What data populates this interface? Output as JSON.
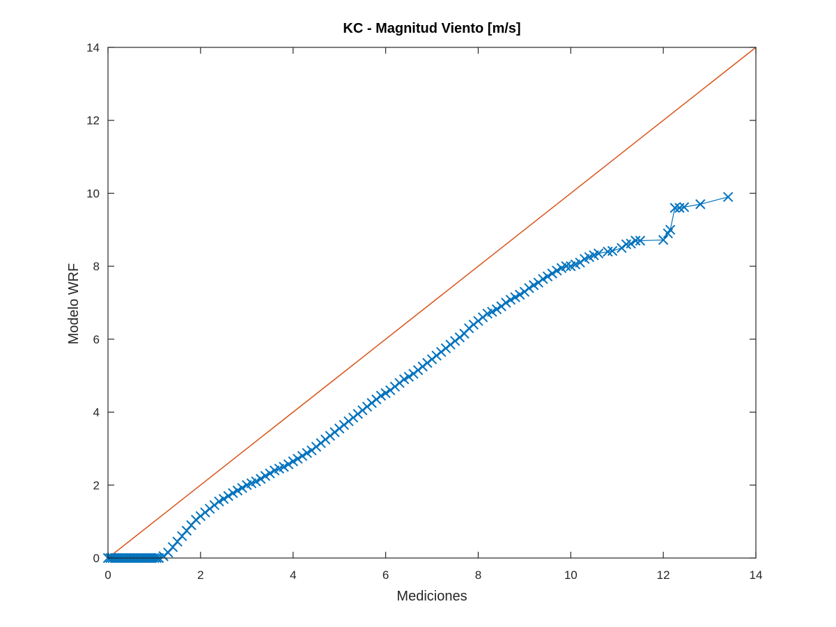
{
  "chart_data": {
    "type": "scatter",
    "title": "KC - Magnitud Viento [m/s]",
    "xlabel": "Mediciones",
    "ylabel": "Modelo WRF",
    "xlim": [
      0,
      14
    ],
    "ylim": [
      0,
      14
    ],
    "xticks": [
      "0",
      "2",
      "4",
      "6",
      "8",
      "10",
      "12",
      "14"
    ],
    "yticks": [
      "0",
      "2",
      "4",
      "6",
      "8",
      "10",
      "12",
      "14"
    ],
    "grid": false,
    "box": true,
    "colors": {
      "qq": "#0072BD",
      "reference": "#D95319",
      "axes": "#262626"
    },
    "series": [
      {
        "marker": "x",
        "linestyle": "solid",
        "points": [
          [
            0.0,
            0.0
          ],
          [
            0.05,
            0.0
          ],
          [
            0.1,
            0.0
          ],
          [
            0.15,
            0.0
          ],
          [
            0.2,
            0.0
          ],
          [
            0.25,
            0.0
          ],
          [
            0.3,
            0.0
          ],
          [
            0.35,
            0.0
          ],
          [
            0.4,
            0.0
          ],
          [
            0.45,
            0.0
          ],
          [
            0.5,
            0.0
          ],
          [
            0.55,
            0.0
          ],
          [
            0.6,
            0.0
          ],
          [
            0.65,
            0.0
          ],
          [
            0.7,
            0.0
          ],
          [
            0.75,
            0.0
          ],
          [
            0.8,
            0.0
          ],
          [
            0.85,
            0.0
          ],
          [
            0.9,
            0.0
          ],
          [
            0.95,
            0.0
          ],
          [
            1.0,
            0.0
          ],
          [
            1.05,
            0.0
          ],
          [
            1.1,
            0.0
          ],
          [
            1.2,
            0.05
          ],
          [
            1.3,
            0.15
          ],
          [
            1.4,
            0.3
          ],
          [
            1.5,
            0.45
          ],
          [
            1.6,
            0.6
          ],
          [
            1.7,
            0.75
          ],
          [
            1.8,
            0.9
          ],
          [
            1.9,
            1.05
          ],
          [
            2.0,
            1.15
          ],
          [
            2.1,
            1.25
          ],
          [
            2.2,
            1.35
          ],
          [
            2.3,
            1.45
          ],
          [
            2.4,
            1.55
          ],
          [
            2.5,
            1.62
          ],
          [
            2.6,
            1.7
          ],
          [
            2.7,
            1.78
          ],
          [
            2.8,
            1.85
          ],
          [
            2.9,
            1.92
          ],
          [
            3.0,
            2.0
          ],
          [
            3.1,
            2.05
          ],
          [
            3.2,
            2.1
          ],
          [
            3.3,
            2.17
          ],
          [
            3.4,
            2.25
          ],
          [
            3.5,
            2.32
          ],
          [
            3.6,
            2.4
          ],
          [
            3.7,
            2.45
          ],
          [
            3.8,
            2.5
          ],
          [
            3.9,
            2.57
          ],
          [
            4.0,
            2.65
          ],
          [
            4.1,
            2.72
          ],
          [
            4.2,
            2.8
          ],
          [
            4.3,
            2.88
          ],
          [
            4.4,
            2.95
          ],
          [
            4.5,
            3.05
          ],
          [
            4.6,
            3.15
          ],
          [
            4.7,
            3.25
          ],
          [
            4.8,
            3.35
          ],
          [
            4.9,
            3.45
          ],
          [
            5.0,
            3.55
          ],
          [
            5.1,
            3.65
          ],
          [
            5.2,
            3.75
          ],
          [
            5.3,
            3.85
          ],
          [
            5.4,
            3.95
          ],
          [
            5.5,
            4.05
          ],
          [
            5.6,
            4.15
          ],
          [
            5.7,
            4.25
          ],
          [
            5.8,
            4.35
          ],
          [
            5.9,
            4.45
          ],
          [
            6.0,
            4.52
          ],
          [
            6.1,
            4.6
          ],
          [
            6.2,
            4.7
          ],
          [
            6.3,
            4.8
          ],
          [
            6.4,
            4.9
          ],
          [
            6.5,
            4.97
          ],
          [
            6.6,
            5.05
          ],
          [
            6.7,
            5.15
          ],
          [
            6.8,
            5.25
          ],
          [
            6.9,
            5.35
          ],
          [
            7.0,
            5.45
          ],
          [
            7.1,
            5.55
          ],
          [
            7.2,
            5.65
          ],
          [
            7.3,
            5.75
          ],
          [
            7.4,
            5.85
          ],
          [
            7.5,
            5.95
          ],
          [
            7.6,
            6.05
          ],
          [
            7.7,
            6.15
          ],
          [
            7.8,
            6.3
          ],
          [
            7.9,
            6.4
          ],
          [
            8.0,
            6.5
          ],
          [
            8.1,
            6.6
          ],
          [
            8.2,
            6.7
          ],
          [
            8.3,
            6.75
          ],
          [
            8.4,
            6.82
          ],
          [
            8.5,
            6.9
          ],
          [
            8.6,
            7.0
          ],
          [
            8.7,
            7.08
          ],
          [
            8.8,
            7.15
          ],
          [
            8.9,
            7.22
          ],
          [
            9.0,
            7.3
          ],
          [
            9.1,
            7.4
          ],
          [
            9.2,
            7.48
          ],
          [
            9.3,
            7.55
          ],
          [
            9.4,
            7.65
          ],
          [
            9.5,
            7.72
          ],
          [
            9.6,
            7.8
          ],
          [
            9.7,
            7.88
          ],
          [
            9.8,
            7.95
          ],
          [
            9.9,
            8.0
          ],
          [
            10.0,
            8.0
          ],
          [
            10.1,
            8.05
          ],
          [
            10.2,
            8.1
          ],
          [
            10.3,
            8.2
          ],
          [
            10.4,
            8.25
          ],
          [
            10.5,
            8.3
          ],
          [
            10.6,
            8.35
          ],
          [
            10.8,
            8.4
          ],
          [
            10.9,
            8.42
          ],
          [
            11.1,
            8.5
          ],
          [
            11.2,
            8.6
          ],
          [
            11.3,
            8.62
          ],
          [
            11.4,
            8.7
          ],
          [
            11.5,
            8.7
          ],
          [
            12.0,
            8.72
          ],
          [
            12.1,
            8.9
          ],
          [
            12.15,
            9.0
          ],
          [
            12.25,
            9.6
          ],
          [
            12.35,
            9.6
          ],
          [
            12.45,
            9.62
          ],
          [
            12.8,
            9.7
          ],
          [
            13.4,
            9.9
          ]
        ]
      }
    ],
    "reference_line": {
      "from": [
        0,
        0
      ],
      "to": [
        14,
        14
      ]
    }
  }
}
